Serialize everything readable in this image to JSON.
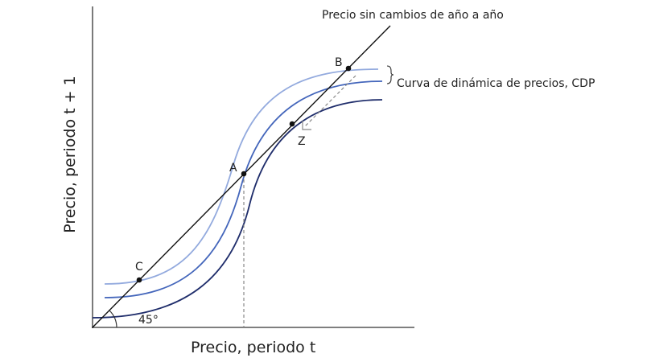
{
  "diagram": {
    "y_axis_label": "Precio, periodo t + 1",
    "x_axis_label": "Precio, periodo t",
    "line_label": "Precio sin cambios de año a año",
    "curve_label": "Curva de dinámica de precios, CDP",
    "angle_label": "45°",
    "points": [
      {
        "label": "A"
      },
      {
        "label": "B"
      },
      {
        "label": "C"
      },
      {
        "label": "Z"
      }
    ]
  }
}
